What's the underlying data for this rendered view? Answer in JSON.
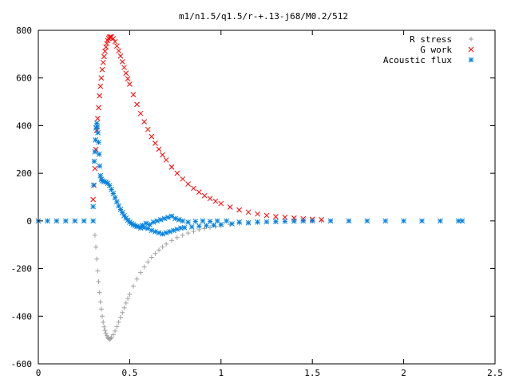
{
  "chart_data": {
    "type": "scatter",
    "title": "m1/n1.5/q1.5/r-+.13-j68/M0.2/512",
    "xlabel": "",
    "ylabel": "",
    "xlim": [
      0,
      2.5
    ],
    "ylim": [
      -600,
      800
    ],
    "x_ticks": [
      0,
      0.5,
      1,
      1.5,
      2,
      2.5
    ],
    "x_tick_labels": [
      "0",
      "0.5",
      "1",
      "1.5",
      "2",
      "2.5"
    ],
    "y_ticks": [
      -600,
      -400,
      -200,
      0,
      200,
      400,
      600,
      800
    ],
    "y_tick_labels": [
      "-600",
      "-400",
      "-200",
      "0",
      "200",
      "400",
      "600",
      "800"
    ],
    "grid": false,
    "legend": "top-right",
    "series": [
      {
        "name": "R stress",
        "marker": "+",
        "color": "#a0a0a0",
        "points": [
          [
            0.31,
            -60
          ],
          [
            0.315,
            -110
          ],
          [
            0.32,
            -160
          ],
          [
            0.325,
            -210
          ],
          [
            0.33,
            -255
          ],
          [
            0.335,
            -300
          ],
          [
            0.34,
            -340
          ],
          [
            0.345,
            -370
          ],
          [
            0.35,
            -400
          ],
          [
            0.355,
            -425
          ],
          [
            0.36,
            -445
          ],
          [
            0.365,
            -460
          ],
          [
            0.37,
            -472
          ],
          [
            0.375,
            -482
          ],
          [
            0.38,
            -490
          ],
          [
            0.385,
            -494
          ],
          [
            0.39,
            -496
          ],
          [
            0.395,
            -494
          ],
          [
            0.4,
            -490
          ],
          [
            0.41,
            -478
          ],
          [
            0.42,
            -462
          ],
          [
            0.43,
            -444
          ],
          [
            0.44,
            -425
          ],
          [
            0.45,
            -405
          ],
          [
            0.46,
            -385
          ],
          [
            0.47,
            -365
          ],
          [
            0.48,
            -345
          ],
          [
            0.49,
            -326
          ],
          [
            0.5,
            -308
          ],
          [
            0.52,
            -274
          ],
          [
            0.54,
            -244
          ],
          [
            0.56,
            -217
          ],
          [
            0.58,
            -193
          ],
          [
            0.6,
            -172
          ],
          [
            0.62,
            -153
          ],
          [
            0.64,
            -137
          ],
          [
            0.66,
            -122
          ],
          [
            0.68,
            -109
          ],
          [
            0.7,
            -97
          ],
          [
            0.73,
            -82
          ],
          [
            0.76,
            -70
          ],
          [
            0.79,
            -60
          ],
          [
            0.82,
            -51
          ],
          [
            0.85,
            -44
          ],
          [
            0.88,
            -37
          ],
          [
            0.91,
            -32
          ],
          [
            0.94,
            -27
          ],
          [
            0.97,
            -23
          ],
          [
            1.0,
            -20
          ],
          [
            1.05,
            -15
          ],
          [
            1.1,
            -11
          ],
          [
            1.15,
            -8
          ],
          [
            1.2,
            -6
          ],
          [
            1.25,
            -4
          ],
          [
            1.3,
            -3
          ],
          [
            1.35,
            -2
          ],
          [
            1.4,
            -1
          ],
          [
            1.45,
            -1
          ],
          [
            1.5,
            0
          ],
          [
            1.55,
            0
          ]
        ]
      },
      {
        "name": "G work",
        "marker": "x",
        "color": "#ff0000",
        "points": [
          [
            0.3,
            90
          ],
          [
            0.305,
            150
          ],
          [
            0.31,
            220
          ],
          [
            0.315,
            300
          ],
          [
            0.32,
            380
          ],
          [
            0.325,
            430
          ],
          [
            0.33,
            475
          ],
          [
            0.335,
            525
          ],
          [
            0.34,
            565
          ],
          [
            0.345,
            600
          ],
          [
            0.35,
            635
          ],
          [
            0.355,
            665
          ],
          [
            0.36,
            690
          ],
          [
            0.365,
            712
          ],
          [
            0.37,
            730
          ],
          [
            0.375,
            745
          ],
          [
            0.38,
            757
          ],
          [
            0.385,
            766
          ],
          [
            0.39,
            771
          ],
          [
            0.395,
            773
          ],
          [
            0.4,
            772
          ],
          [
            0.41,
            765
          ],
          [
            0.42,
            752
          ],
          [
            0.43,
            734
          ],
          [
            0.44,
            714
          ],
          [
            0.45,
            692
          ],
          [
            0.46,
            668
          ],
          [
            0.47,
            644
          ],
          [
            0.48,
            620
          ],
          [
            0.49,
            597
          ],
          [
            0.5,
            574
          ],
          [
            0.52,
            530
          ],
          [
            0.54,
            489
          ],
          [
            0.56,
            451
          ],
          [
            0.58,
            416
          ],
          [
            0.6,
            384
          ],
          [
            0.62,
            354
          ],
          [
            0.64,
            326
          ],
          [
            0.66,
            301
          ],
          [
            0.68,
            277
          ],
          [
            0.7,
            256
          ],
          [
            0.73,
            226
          ],
          [
            0.76,
            200
          ],
          [
            0.79,
            176
          ],
          [
            0.82,
            155
          ],
          [
            0.85,
            137
          ],
          [
            0.88,
            121
          ],
          [
            0.91,
            106
          ],
          [
            0.94,
            94
          ],
          [
            0.97,
            83
          ],
          [
            1.0,
            73
          ],
          [
            1.05,
            58
          ],
          [
            1.1,
            46
          ],
          [
            1.15,
            37
          ],
          [
            1.2,
            29
          ],
          [
            1.25,
            23
          ],
          [
            1.3,
            18
          ],
          [
            1.35,
            15
          ],
          [
            1.4,
            12
          ],
          [
            1.45,
            9
          ],
          [
            1.5,
            7
          ],
          [
            1.55,
            5
          ]
        ]
      },
      {
        "name": "Acoustic flux",
        "marker": "*",
        "color": "#0080e0",
        "points": [
          [
            0.0,
            0
          ],
          [
            0.05,
            0
          ],
          [
            0.1,
            0
          ],
          [
            0.15,
            0
          ],
          [
            0.2,
            0
          ],
          [
            0.25,
            0
          ],
          [
            0.3,
            0
          ],
          [
            0.3,
            60
          ],
          [
            0.303,
            150
          ],
          [
            0.306,
            250
          ],
          [
            0.31,
            290
          ],
          [
            0.313,
            340
          ],
          [
            0.316,
            390
          ],
          [
            0.32,
            410
          ],
          [
            0.323,
            395
          ],
          [
            0.326,
            370
          ],
          [
            0.33,
            330
          ],
          [
            0.333,
            280
          ],
          [
            0.336,
            230
          ],
          [
            0.34,
            190
          ],
          [
            0.345,
            175
          ],
          [
            0.35,
            168
          ],
          [
            0.36,
            165
          ],
          [
            0.37,
            163
          ],
          [
            0.38,
            158
          ],
          [
            0.39,
            148
          ],
          [
            0.4,
            132
          ],
          [
            0.41,
            115
          ],
          [
            0.42,
            97
          ],
          [
            0.43,
            80
          ],
          [
            0.44,
            63
          ],
          [
            0.45,
            48
          ],
          [
            0.46,
            35
          ],
          [
            0.47,
            22
          ],
          [
            0.48,
            12
          ],
          [
            0.49,
            3
          ],
          [
            0.5,
            -5
          ],
          [
            0.51,
            -11
          ],
          [
            0.52,
            -16
          ],
          [
            0.53,
            -20
          ],
          [
            0.54,
            -23
          ],
          [
            0.55,
            -25
          ],
          [
            0.56,
            -30
          ],
          [
            0.57,
            -18
          ],
          [
            0.58,
            -28
          ],
          [
            0.59,
            -10
          ],
          [
            0.6,
            -32
          ],
          [
            0.61,
            -15
          ],
          [
            0.62,
            -40
          ],
          [
            0.63,
            -5
          ],
          [
            0.64,
            -45
          ],
          [
            0.65,
            0
          ],
          [
            0.66,
            -50
          ],
          [
            0.67,
            5
          ],
          [
            0.68,
            -55
          ],
          [
            0.69,
            10
          ],
          [
            0.7,
            -50
          ],
          [
            0.71,
            15
          ],
          [
            0.72,
            -45
          ],
          [
            0.73,
            20
          ],
          [
            0.74,
            -40
          ],
          [
            0.75,
            10
          ],
          [
            0.76,
            -35
          ],
          [
            0.77,
            5
          ],
          [
            0.78,
            -30
          ],
          [
            0.79,
            0
          ],
          [
            0.8,
            -28
          ],
          [
            0.82,
            -5
          ],
          [
            0.84,
            -25
          ],
          [
            0.86,
            -2
          ],
          [
            0.88,
            -22
          ],
          [
            0.9,
            0
          ],
          [
            0.92,
            -20
          ],
          [
            0.94,
            -2
          ],
          [
            0.96,
            -18
          ],
          [
            0.98,
            0
          ],
          [
            1.0,
            -15
          ],
          [
            1.03,
            0
          ],
          [
            1.06,
            -12
          ],
          [
            1.1,
            -5
          ],
          [
            1.15,
            -8
          ],
          [
            1.2,
            -5
          ],
          [
            1.25,
            -4
          ],
          [
            1.3,
            -3
          ],
          [
            1.35,
            -2
          ],
          [
            1.4,
            -1
          ],
          [
            1.45,
            0
          ],
          [
            1.5,
            0
          ],
          [
            1.6,
            0
          ],
          [
            1.7,
            0
          ],
          [
            1.8,
            0
          ],
          [
            1.9,
            0
          ],
          [
            2.0,
            0
          ],
          [
            2.1,
            0
          ],
          [
            2.2,
            0
          ],
          [
            2.3,
            0
          ],
          [
            2.32,
            0
          ]
        ]
      }
    ]
  }
}
